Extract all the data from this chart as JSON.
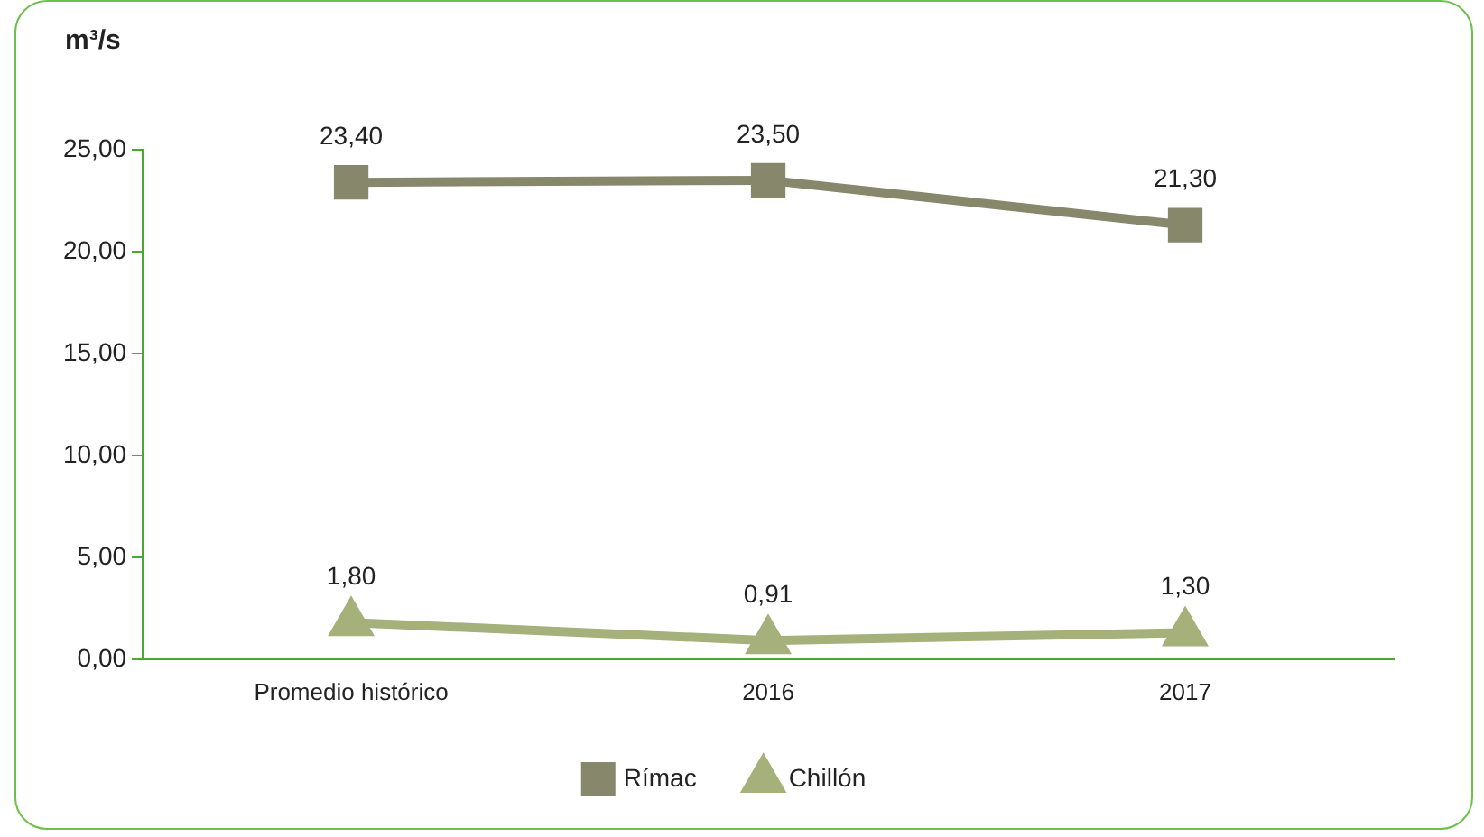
{
  "chart_data": {
    "type": "line",
    "ylabel": "m³/s",
    "categories": [
      "Promedio histórico",
      "2016",
      "2017"
    ],
    "series": [
      {
        "name": "Rímac",
        "color": "#87876b",
        "marker": "square",
        "values": [
          23.4,
          23.5,
          21.3
        ],
        "value_labels": [
          "23,40",
          "23,50",
          "21,30"
        ]
      },
      {
        "name": "Chillón",
        "color": "#a5b07a",
        "marker": "triangle",
        "values": [
          1.8,
          0.91,
          1.3
        ],
        "value_labels": [
          "1,80",
          "0,91",
          "1,30"
        ]
      }
    ],
    "ylim": [
      0,
      25
    ],
    "yticks": [
      {
        "value": 0,
        "label": "0,00"
      },
      {
        "value": 5,
        "label": "5,00"
      },
      {
        "value": 10,
        "label": "10,00"
      },
      {
        "value": 15,
        "label": "15,00"
      },
      {
        "value": 20,
        "label": "20,00"
      },
      {
        "value": 25,
        "label": "25,00"
      }
    ],
    "grid": false,
    "legend": "bottom",
    "line_style": "solid"
  }
}
